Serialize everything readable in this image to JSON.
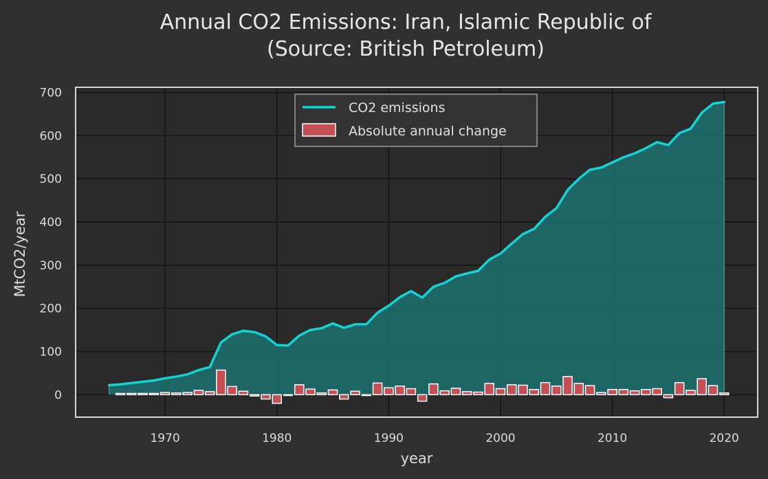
{
  "chart_data": {
    "type": "line",
    "title": "Annual CO2 Emissions: Iran, Islamic Republic of",
    "subtitle": "(Source: British Petroleum)",
    "xlabel": "year",
    "ylabel": "MtCO2/year",
    "xlim": [
      1962,
      2023
    ],
    "ylim": [
      -52,
      712
    ],
    "xticks": [
      1970,
      1980,
      1990,
      2000,
      2010,
      2020
    ],
    "yticks": [
      0,
      100,
      200,
      300,
      400,
      500,
      600,
      700
    ],
    "grid": true,
    "legend_position": "top-center",
    "x": [
      1965,
      1966,
      1967,
      1968,
      1969,
      1970,
      1971,
      1972,
      1973,
      1974,
      1975,
      1976,
      1977,
      1978,
      1979,
      1980,
      1981,
      1982,
      1983,
      1984,
      1985,
      1986,
      1987,
      1988,
      1989,
      1990,
      1991,
      1992,
      1993,
      1994,
      1995,
      1996,
      1997,
      1998,
      1999,
      2000,
      2001,
      2002,
      2003,
      2004,
      2005,
      2006,
      2007,
      2008,
      2009,
      2010,
      2011,
      2012,
      2013,
      2014,
      2015,
      2016,
      2017,
      2018,
      2019,
      2020
    ],
    "series": [
      {
        "name": "CO2 emissions",
        "kind": "line",
        "color": "#13d4d4",
        "fill": "#1d6a6a",
        "values": [
          22,
          24,
          27,
          30,
          33,
          38,
          42,
          47,
          57,
          64,
          121,
          140,
          148,
          145,
          135,
          115,
          114,
          137,
          150,
          154,
          165,
          155,
          163,
          163,
          190,
          206,
          226,
          240,
          225,
          250,
          259,
          274,
          281,
          287,
          313,
          327,
          350,
          372,
          384,
          412,
          432,
          474,
          500,
          521,
          526,
          538,
          550,
          559,
          571,
          585,
          578,
          606,
          616,
          653,
          674,
          678
        ]
      },
      {
        "name": "Absolute annual change",
        "kind": "bar",
        "color": "#c45055",
        "edge": "#ffffff",
        "values": [
          2,
          3,
          3,
          3,
          3,
          5,
          4,
          5,
          10,
          7,
          57,
          19,
          8,
          -3,
          -10,
          -20,
          -1,
          23,
          13,
          4,
          11,
          -10,
          8,
          0,
          27,
          16,
          20,
          14,
          -15,
          25,
          9,
          15,
          7,
          6,
          26,
          14,
          23,
          22,
          12,
          28,
          20,
          42,
          26,
          21,
          5,
          12,
          12,
          9,
          12,
          14,
          -7,
          28,
          10,
          37,
          21,
          4
        ]
      }
    ]
  }
}
